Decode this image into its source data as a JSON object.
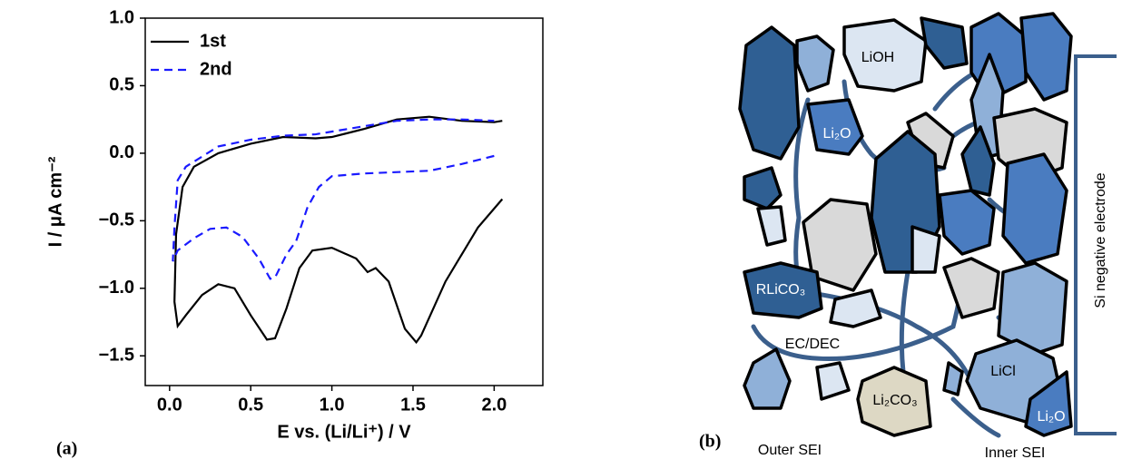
{
  "chart_data": {
    "type": "line",
    "xlabel": "E vs. (Li/Li⁺) / V",
    "ylabel": "I / μA cm⁻²",
    "panel_label": "(a)",
    "xlim": [
      -0.15,
      2.3
    ],
    "ylim": [
      -1.72,
      1.0
    ],
    "xticks": [
      {
        "value": 0,
        "label": "0.0"
      },
      {
        "value": 0.5,
        "label": "0.5"
      },
      {
        "value": 1,
        "label": "1.0"
      },
      {
        "value": 1.5,
        "label": "1.5"
      },
      {
        "value": 2,
        "label": "2.0"
      }
    ],
    "yticks": [
      {
        "value": 1,
        "label": "1.0"
      },
      {
        "value": 0.5,
        "label": "0.5"
      },
      {
        "value": 0,
        "label": "0.0"
      },
      {
        "value": -0.5,
        "label": "−0.5"
      },
      {
        "value": -1,
        "label": "−1.0"
      },
      {
        "value": -1.5,
        "label": "−1.5"
      }
    ],
    "grid": false,
    "legend": "upper left",
    "series": [
      {
        "name": "1st",
        "color": "#000000",
        "dash": false,
        "x": [
          2.05,
          1.9,
          1.7,
          1.55,
          1.52,
          1.45,
          1.35,
          1.27,
          1.22,
          1.15,
          1.0,
          0.88,
          0.8,
          0.72,
          0.65,
          0.6,
          0.5,
          0.4,
          0.3,
          0.2,
          0.1,
          0.05,
          0.03,
          0.04,
          0.08,
          0.15,
          0.3,
          0.5,
          0.7,
          0.9,
          1.0,
          1.2,
          1.4,
          1.6,
          1.8,
          2.0,
          2.05
        ],
        "values": [
          -0.34,
          -0.55,
          -0.95,
          -1.35,
          -1.4,
          -1.3,
          -0.95,
          -0.85,
          -0.88,
          -0.78,
          -0.7,
          -0.72,
          -0.85,
          -1.15,
          -1.37,
          -1.38,
          -1.2,
          -1.0,
          -0.97,
          -1.05,
          -1.2,
          -1.28,
          -1.1,
          -0.6,
          -0.25,
          -0.1,
          0.0,
          0.07,
          0.12,
          0.11,
          0.12,
          0.18,
          0.25,
          0.27,
          0.24,
          0.23,
          0.24
        ]
      },
      {
        "name": "2nd",
        "color": "#1a1aff",
        "dash": true,
        "x": [
          2.0,
          1.8,
          1.6,
          1.2,
          1.0,
          0.92,
          0.85,
          0.78,
          0.72,
          0.65,
          0.62,
          0.55,
          0.45,
          0.35,
          0.25,
          0.15,
          0.05,
          0.02,
          0.03,
          0.05,
          0.1,
          0.3,
          0.5,
          0.7,
          0.9,
          1.2,
          1.4,
          1.6,
          1.8,
          2.0
        ],
        "values": [
          -0.02,
          -0.08,
          -0.13,
          -0.15,
          -0.17,
          -0.25,
          -0.4,
          -0.65,
          -0.75,
          -0.92,
          -0.93,
          -0.78,
          -0.62,
          -0.55,
          -0.56,
          -0.63,
          -0.72,
          -0.8,
          -0.55,
          -0.2,
          -0.1,
          0.05,
          0.1,
          0.13,
          0.14,
          0.2,
          0.24,
          0.25,
          0.25,
          0.24
        ]
      }
    ]
  },
  "diagram": {
    "panel_label": "(b)",
    "labels": [
      "LiOH",
      "Li₂O",
      "RLiCO₃",
      "EC/DEC",
      "Li₂CO₃",
      "LiCl",
      "Li₂O"
    ],
    "electrode": "Si negative electrode",
    "outer": "Outer SEI",
    "inner": "Inner SEI"
  }
}
